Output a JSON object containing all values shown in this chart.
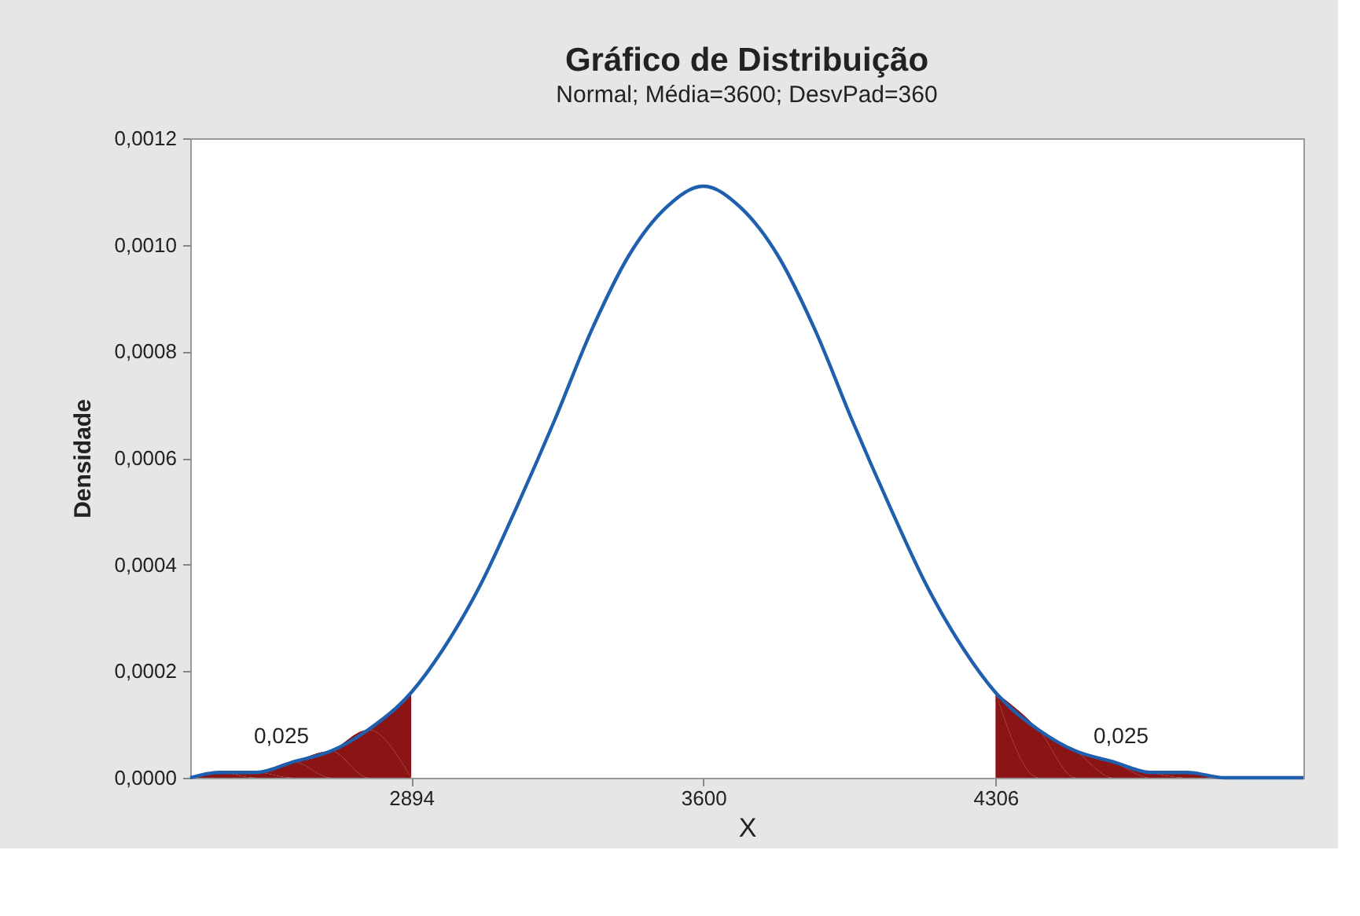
{
  "chart_data": {
    "type": "line",
    "title": "Gráfico de Distribuição",
    "subtitle": "Normal; Média=3600; DesvPad=360",
    "xlabel": "X",
    "ylabel": "Densidade",
    "xlim": [
      2360,
      5050
    ],
    "xticks": [
      2894,
      3600,
      4306
    ],
    "ylim": [
      0,
      0.0012
    ],
    "yticks": [
      {
        "value": 0,
        "label": "0,0000"
      },
      {
        "value": 0.0002,
        "label": "0,0002"
      },
      {
        "value": 0.0004,
        "label": "0,0004"
      },
      {
        "value": 0.0006,
        "label": "0,0006"
      },
      {
        "value": 0.0008,
        "label": "0,0008"
      },
      {
        "value": 0.001,
        "label": "0,0010"
      },
      {
        "value": 0.0012,
        "label": "0,0012"
      }
    ],
    "grid": false,
    "series": [
      {
        "type": "area",
        "color": "#8b1414",
        "x": [
          2360,
          2430,
          2520,
          2610,
          2700,
          2790,
          2894
        ],
        "values": [
          0,
          1e-05,
          1e-05,
          3e-05,
          5e-05,
          9e-05,
          0.00016
        ]
      },
      {
        "type": "area",
        "color": "#8b1414",
        "x": [
          4306,
          4410,
          4500,
          4590,
          4680,
          4770,
          4860,
          4950,
          5040,
          5050
        ],
        "values": [
          0.00016,
          9e-05,
          5e-05,
          3e-05,
          1e-05,
          1e-05,
          0,
          0,
          0,
          0
        ]
      },
      {
        "color": "#1f5fad",
        "x": [
          2360,
          2430,
          2520,
          2610,
          2700,
          2790,
          2894,
          2970,
          3060,
          3150,
          3240,
          3330,
          3420,
          3510,
          3600,
          3690,
          3780,
          3870,
          3960,
          4050,
          4140,
          4230,
          4306,
          4410,
          4500,
          4590,
          4680,
          4770,
          4860,
          4950,
          5040,
          5050
        ],
        "values": [
          0,
          1e-05,
          1e-05,
          3e-05,
          5e-05,
          9e-05,
          0.00016,
          0.00024,
          0.00036,
          0.00051,
          0.00067,
          0.00084,
          0.00098,
          0.00107,
          0.00111,
          0.00107,
          0.00098,
          0.00084,
          0.00067,
          0.00051,
          0.00036,
          0.00024,
          0.00016,
          9e-05,
          5e-05,
          3e-05,
          1e-05,
          1e-05,
          0,
          0,
          0,
          0
        ]
      }
    ],
    "annotations": [
      "0,025",
      "0,025"
    ]
  }
}
